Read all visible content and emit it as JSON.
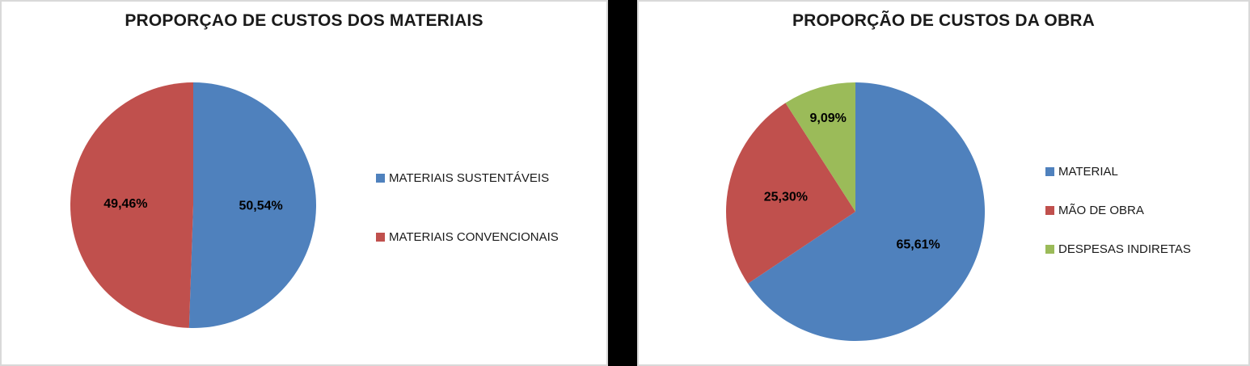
{
  "chart_data": [
    {
      "type": "pie",
      "title": "PROPORÇAO DE CUSTOS DOS MATERIAIS",
      "labels": [
        "MATERIAIS SUSTENTÁVEIS",
        "MATERIAIS CONVENCIONAIS"
      ],
      "values": [
        50.54,
        49.46
      ],
      "value_labels": [
        "50,54%",
        "49,46%"
      ],
      "colors": [
        "#4F81BD",
        "#C0504D"
      ],
      "legend_position": "right",
      "start_angle_deg": 0,
      "direction": "clockwise"
    },
    {
      "type": "pie",
      "title": "PROPORÇÃO DE CUSTOS DA OBRA",
      "labels": [
        "MATERIAL",
        "MÃO DE OBRA",
        "DESPESAS INDIRETAS"
      ],
      "values": [
        65.61,
        25.3,
        9.09
      ],
      "value_labels": [
        "65,61%",
        "25,30%",
        "9,09%"
      ],
      "colors": [
        "#4F81BD",
        "#C0504D",
        "#9BBB59"
      ],
      "legend_position": "right",
      "start_angle_deg": 0,
      "direction": "clockwise"
    }
  ]
}
